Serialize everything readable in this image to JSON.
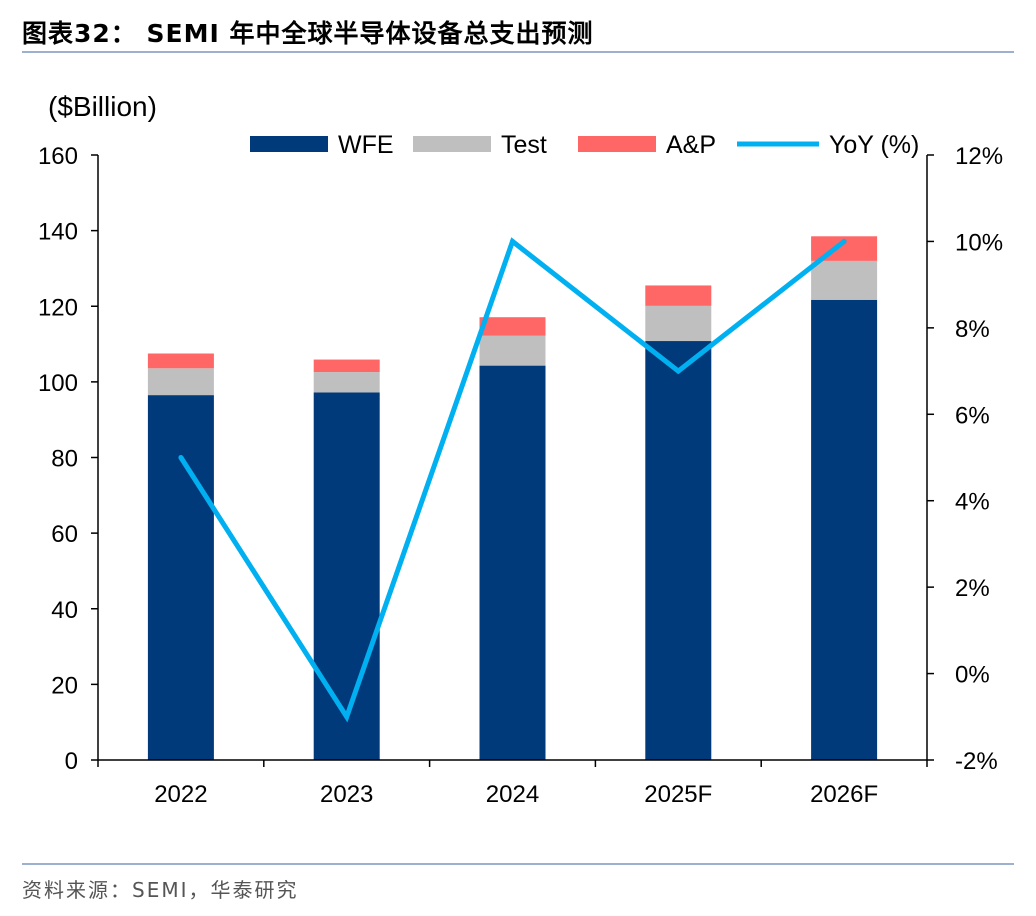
{
  "header": {
    "title": "图表32： SEMI 年中全球半导体设备总支出预测"
  },
  "footer": {
    "source": "资料来源：SEMI，华泰研究"
  },
  "chart_data": {
    "type": "bar",
    "stacked": true,
    "title": "图表32： SEMI 年中全球半导体设备总支出预测",
    "ylabel": "($Billion)",
    "ylim": [
      0,
      160
    ],
    "yticks": [
      "0",
      "20",
      "40",
      "60",
      "80",
      "100",
      "120",
      "140",
      "160"
    ],
    "y2lim": [
      -2,
      12
    ],
    "y2ticks": [
      "-2%",
      "0%",
      "2%",
      "4%",
      "6%",
      "8%",
      "10%",
      "12%"
    ],
    "categories": [
      "2022",
      "2023",
      "2024",
      "2025F",
      "2026F"
    ],
    "series": [
      {
        "name": "WFE",
        "type": "bar",
        "axis": "left",
        "color": "#003a7a",
        "values": [
          96.5,
          97.2,
          104.3,
          110.8,
          121.7
        ]
      },
      {
        "name": "Test",
        "type": "bar",
        "axis": "left",
        "color": "#bfbfbf",
        "values": [
          7.1,
          5.4,
          7.9,
          9.3,
          10.3
        ]
      },
      {
        "name": "A&P",
        "type": "bar",
        "axis": "left",
        "color": "#ff6666",
        "values": [
          3.9,
          3.3,
          4.9,
          5.4,
          6.5
        ]
      },
      {
        "name": "YoY (%)",
        "type": "line",
        "axis": "right",
        "color": "#00b0f0",
        "values": [
          5.0,
          -1.0,
          10.0,
          7.0,
          10.0
        ]
      }
    ],
    "legend": "top",
    "grid": false
  }
}
